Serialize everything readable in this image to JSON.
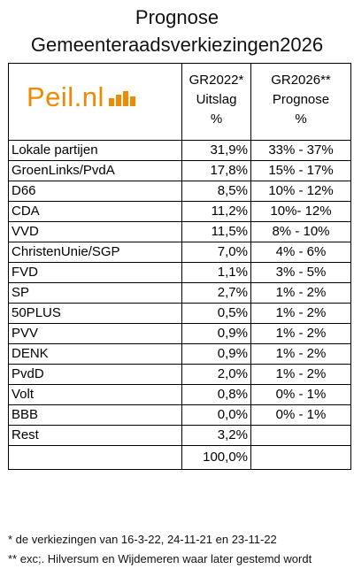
{
  "title": {
    "line1": "Prognose",
    "line2": "Gemeenteraadsverkiezingen2026"
  },
  "logo": {
    "text": "Peil.nl"
  },
  "header": {
    "col2": [
      "GR2022*",
      "Uitslag",
      "%"
    ],
    "col3": [
      "GR2026**",
      "Prognose",
      "%"
    ]
  },
  "rows": [
    {
      "party": "Lokale partijen",
      "gr2022": "31,9%",
      "gr2026": "33% - 37%"
    },
    {
      "party": "GroenLinks/PvdA",
      "gr2022": "17,8%",
      "gr2026": "15% - 17%"
    },
    {
      "party": "D66",
      "gr2022": "8,5%",
      "gr2026": "10% - 12%"
    },
    {
      "party": "CDA",
      "gr2022": "11,2%",
      "gr2026": "10%- 12%"
    },
    {
      "party": "VVD",
      "gr2022": "11,5%",
      "gr2026": "8% - 10%"
    },
    {
      "party": "ChristenUnie/SGP",
      "gr2022": "7,0%",
      "gr2026": "4% - 6%"
    },
    {
      "party": "FVD",
      "gr2022": "1,1%",
      "gr2026": "3% - 5%"
    },
    {
      "party": "SP",
      "gr2022": "2,7%",
      "gr2026": "1% - 2%"
    },
    {
      "party": "50PLUS",
      "gr2022": "0,5%",
      "gr2026": "1% - 2%"
    },
    {
      "party": "PVV",
      "gr2022": "0,9%",
      "gr2026": "1% - 2%"
    },
    {
      "party": "DENK",
      "gr2022": "0,9%",
      "gr2026": "1% - 2%"
    },
    {
      "party": "PvdD",
      "gr2022": "2,0%",
      "gr2026": "1% - 2%"
    },
    {
      "party": "Volt",
      "gr2022": "0,8%",
      "gr2026": "0% - 1%"
    },
    {
      "party": "BBB",
      "gr2022": "0,0%",
      "gr2026": "0% - 1%"
    },
    {
      "party": "Rest",
      "gr2022": "3,2%",
      "gr2026": ""
    }
  ],
  "total": {
    "gr2022": "100,0%"
  },
  "footnotes": [
    "* de verkiezingen van 16-3-22, 24-11-21 en 23-11-22",
    "** exc;. Hilversum en Wijdemeren waar later gestemd wordt"
  ]
}
